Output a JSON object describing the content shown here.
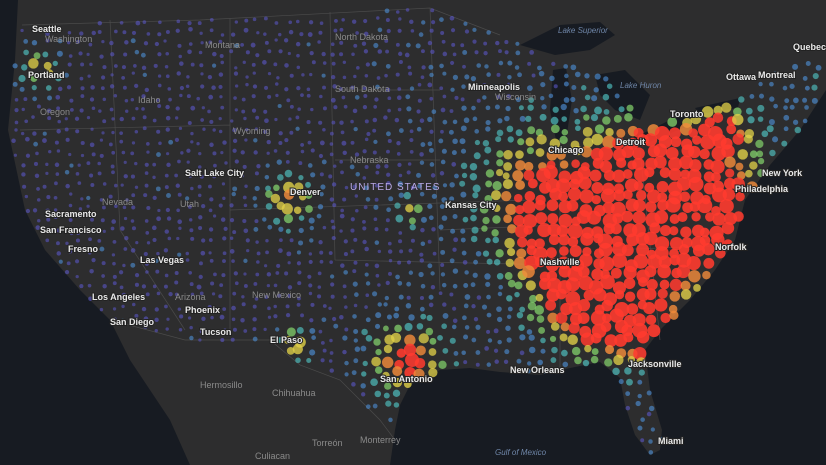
{
  "labels": {
    "states": [
      "Washington",
      "Montana",
      "North Dakota",
      "Oregon",
      "Idaho",
      "South Dakota",
      "Wyoming",
      "Nebraska",
      "Nevada",
      "Utah",
      "Arizona",
      "New Mexico",
      "Wisconsin"
    ],
    "cities": [
      "Seattle",
      "Portland",
      "Minneapolis",
      "Chicago",
      "Detroit",
      "Toronto",
      "Ottawa",
      "Montreal",
      "Quebec",
      "Salt Lake City",
      "Denver",
      "Sacramento",
      "San Francisco",
      "Fresno",
      "Las Vegas",
      "Los Angeles",
      "San Diego",
      "Phoenix",
      "Tucson",
      "El Paso",
      "Kansas City",
      "San Antonio",
      "New Orleans",
      "Jacksonville",
      "Miami",
      "New York",
      "Philadelphia",
      "Norfolk",
      "Nashville",
      "Hermosillo",
      "Chihuahua",
      "Torreón",
      "Monterrey",
      "Culiacan"
    ],
    "water": [
      "Lake Superior",
      "Lake Huron",
      "Gulf of Mexico"
    ],
    "country": "UNITED STATES"
  }
}
